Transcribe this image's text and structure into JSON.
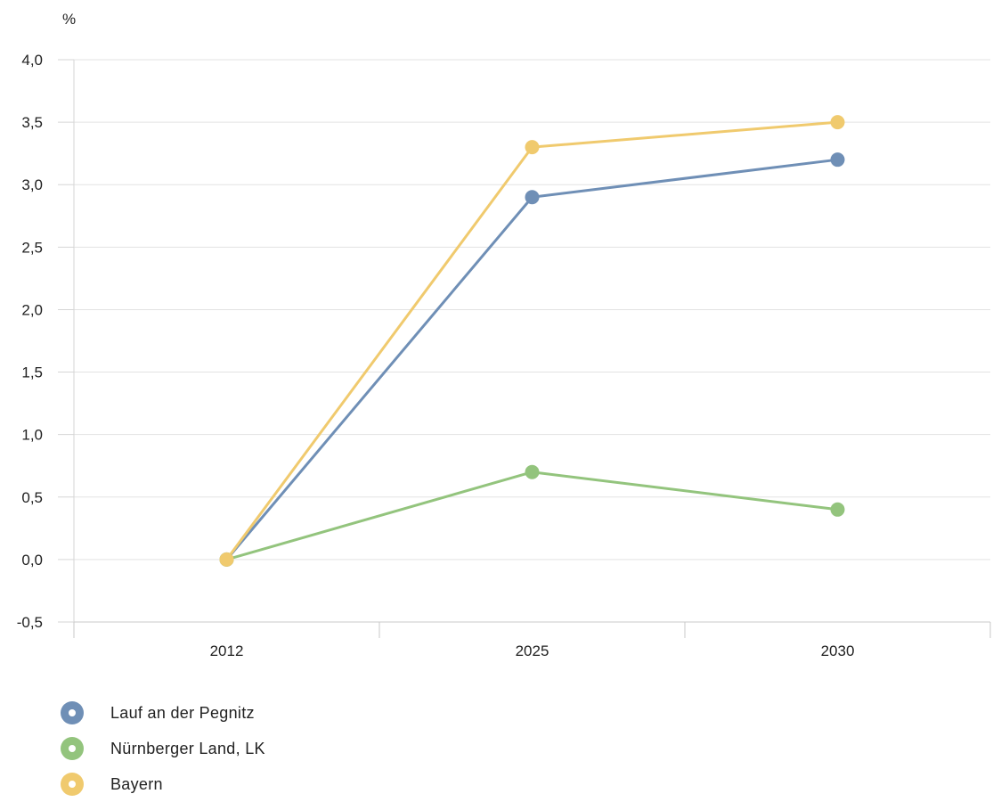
{
  "chart_data": {
    "type": "line",
    "title": "",
    "xlabel": "",
    "ylabel": "%",
    "categories": [
      "2012",
      "2025",
      "2030"
    ],
    "ylim": [
      -0.5,
      4.0
    ],
    "yticks": [
      "4,0",
      "3,5",
      "3,0",
      "2,5",
      "2,0",
      "1,5",
      "1,0",
      "0,5",
      "0,0",
      "-0,5"
    ],
    "ytick_values": [
      4.0,
      3.5,
      3.0,
      2.5,
      2.0,
      1.5,
      1.0,
      0.5,
      0.0,
      -0.5
    ],
    "grid": true,
    "legend_position": "bottom-left",
    "series": [
      {
        "name": "Lauf an der Pegnitz",
        "color": "#6f8fb6",
        "values": [
          0.0,
          2.9,
          3.2
        ]
      },
      {
        "name": "Nürnberger Land, LK",
        "color": "#93c47d",
        "values": [
          0.0,
          0.7,
          0.4
        ]
      },
      {
        "name": "Bayern",
        "color": "#f0ca6e",
        "values": [
          0.0,
          3.3,
          3.5
        ]
      }
    ]
  }
}
